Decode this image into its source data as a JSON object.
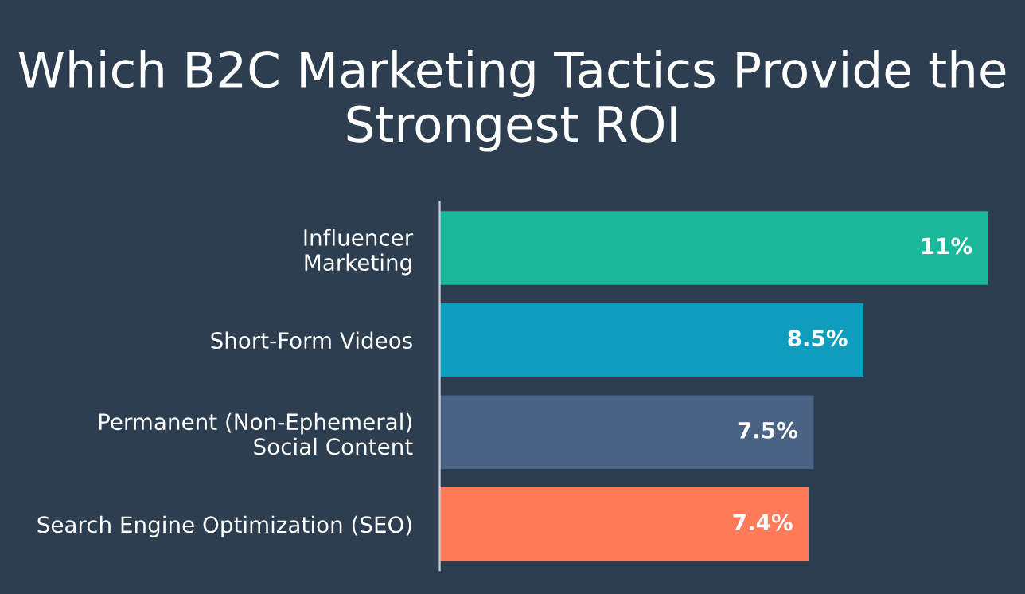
{
  "chart_data": {
    "type": "bar",
    "orientation": "horizontal",
    "title": "Which B2C Marketing Tactics Provide the Strongest ROI",
    "categories": [
      "Influencer\nMarketing",
      "Short-Form Videos",
      "Permanent (Non-Ephemeral)\nSocial Content",
      "Search Engine Optimization (SEO)"
    ],
    "values": [
      11,
      8.5,
      7.5,
      7.4
    ],
    "colors": [
      "#19b89a",
      "#0e9dbd",
      "#4a6384",
      "#ff7a59"
    ],
    "value_labels": [
      "11%",
      "8.5%",
      "7.5%",
      "7.4%"
    ],
    "grid": false,
    "legend": false
  }
}
